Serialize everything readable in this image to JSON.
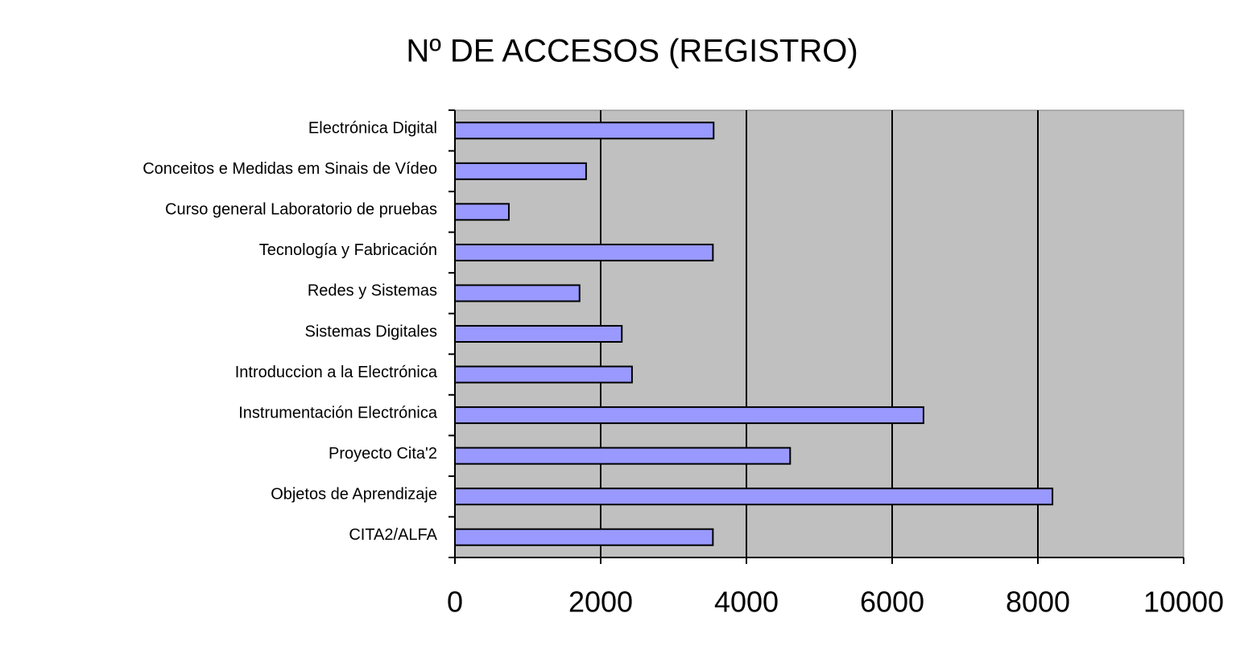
{
  "chart_data": {
    "type": "bar",
    "orientation": "horizontal",
    "title": "Nº DE ACCESOS (REGISTRO)",
    "categories": [
      "Electrónica Digital",
      "Conceitos e Medidas em Sinais de Vídeo",
      "Curso general Laboratorio de pruebas",
      "Tecnología y Fabricación",
      "Redes y Sistemas",
      "Sistemas Digitales",
      "Introduccion a la Electrónica",
      "Instrumentación Electrónica",
      "Proyecto Cita'2",
      "Objetos de Aprendizaje",
      "CITA2/ALFA"
    ],
    "values": [
      3550,
      1800,
      740,
      3540,
      1710,
      2290,
      2430,
      6430,
      4600,
      8200,
      3540
    ],
    "color": "#9999ff",
    "background": "#c0c0c0",
    "xlim": [
      0,
      10000
    ],
    "xticks": [
      0,
      2000,
      4000,
      6000,
      8000,
      10000
    ],
    "grid": true
  }
}
